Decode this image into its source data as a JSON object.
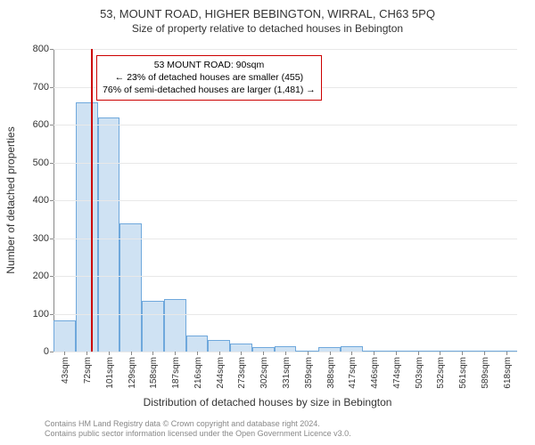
{
  "title": "53, MOUNT ROAD, HIGHER BEBINGTON, WIRRAL, CH63 5PQ",
  "subtitle": "Size of property relative to detached houses in Bebington",
  "ylabel": "Number of detached properties",
  "xlabel": "Distribution of detached houses by size in Bebington",
  "chart": {
    "type": "histogram",
    "background": "#ffffff",
    "grid_color": "#e8e8e8",
    "axis_color": "#888888",
    "bar_fill": "#cfe2f3",
    "bar_border": "#6fa8dc",
    "marker_color": "#cc0000",
    "callout_border": "#cc0000",
    "ylim": [
      0,
      800
    ],
    "ytick_step": 100,
    "yticks": [
      0,
      100,
      200,
      300,
      400,
      500,
      600,
      700,
      800
    ],
    "x_categories": [
      "43sqm",
      "72sqm",
      "101sqm",
      "129sqm",
      "158sqm",
      "187sqm",
      "216sqm",
      "244sqm",
      "273sqm",
      "302sqm",
      "331sqm",
      "359sqm",
      "388sqm",
      "417sqm",
      "446sqm",
      "474sqm",
      "503sqm",
      "532sqm",
      "561sqm",
      "589sqm",
      "618sqm"
    ],
    "values": [
      82,
      660,
      620,
      338,
      135,
      140,
      42,
      30,
      22,
      12,
      14,
      0,
      12,
      14,
      0,
      0,
      0,
      0,
      0,
      0,
      0
    ],
    "marker_position_index": 1.7,
    "bar_width_ratio": 1.0
  },
  "callout": {
    "line1": "53 MOUNT ROAD: 90sqm",
    "line2": "← 23% of detached houses are smaller (455)",
    "line3": "76% of semi-detached houses are larger (1,481) →"
  },
  "footer": {
    "line1": "Contains HM Land Registry data © Crown copyright and database right 2024.",
    "line2": "Contains public sector information licensed under the Open Government Licence v3.0."
  },
  "fonts": {
    "title_size": 13,
    "subtitle_size": 12,
    "axis_label_size": 12,
    "tick_size": 11,
    "callout_size": 10.5,
    "footer_size": 9
  }
}
